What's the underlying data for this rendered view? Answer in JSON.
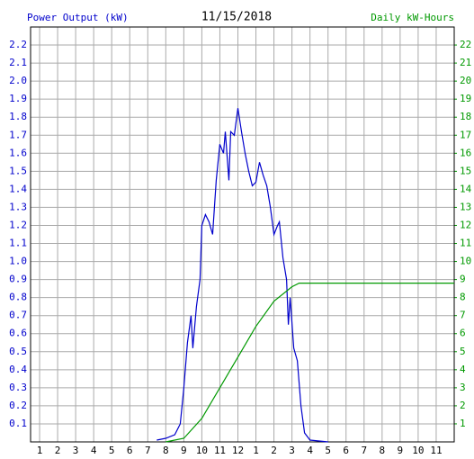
{
  "chart_data": {
    "type": "line",
    "title": "11/15/2018",
    "y_label": "Power Output (kW)",
    "y2_label": "Daily kW-Hours",
    "grid": true,
    "xlim": [
      0.5,
      24
    ],
    "xticks": [
      {
        "value": 1,
        "label": "1"
      },
      {
        "value": 2,
        "label": "2"
      },
      {
        "value": 3,
        "label": "3"
      },
      {
        "value": 4,
        "label": "4"
      },
      {
        "value": 5,
        "label": "5"
      },
      {
        "value": 6,
        "label": "6"
      },
      {
        "value": 7,
        "label": "7"
      },
      {
        "value": 8,
        "label": "8"
      },
      {
        "value": 9,
        "label": "9"
      },
      {
        "value": 10,
        "label": "10"
      },
      {
        "value": 11,
        "label": "11"
      },
      {
        "value": 12,
        "label": "12"
      },
      {
        "value": 13,
        "label": "1"
      },
      {
        "value": 14,
        "label": "2"
      },
      {
        "value": 15,
        "label": "3"
      },
      {
        "value": 16,
        "label": "4"
      },
      {
        "value": 17,
        "label": "5"
      },
      {
        "value": 18,
        "label": "6"
      },
      {
        "value": 19,
        "label": "7"
      },
      {
        "value": 20,
        "label": "8"
      },
      {
        "value": 21,
        "label": "9"
      },
      {
        "value": 22,
        "label": "10"
      },
      {
        "value": 23,
        "label": "11"
      }
    ],
    "ylim": [
      0,
      2.3
    ],
    "yticks": [
      0.1,
      0.2,
      0.3,
      0.4,
      0.5,
      0.6,
      0.7,
      0.8,
      0.9,
      {
        "value": 1,
        "label": "1.0"
      },
      1.1,
      1.2,
      1.3,
      1.4,
      1.5,
      1.6,
      1.7,
      1.8,
      1.9,
      {
        "value": 2,
        "label": "2.0"
      },
      2.1,
      2.2
    ],
    "y2lim": [
      0,
      23
    ],
    "y2ticks": [
      1,
      2,
      3,
      4,
      5,
      6,
      7,
      8,
      9,
      10,
      11,
      12,
      13,
      14,
      15,
      16,
      17,
      18,
      19,
      20,
      21,
      22
    ],
    "series": [
      {
        "name": "Power Output (kW)",
        "color": "#0000cc",
        "axis": "y",
        "x": [
          7.5,
          8,
          8.5,
          8.8,
          9,
          9.2,
          9.4,
          9.5,
          9.7,
          9.9,
          10,
          10.2,
          10.4,
          10.6,
          10.8,
          11,
          11.2,
          11.3,
          11.5,
          11.6,
          11.8,
          12,
          12.2,
          12.4,
          12.6,
          12.8,
          13,
          13.2,
          13.4,
          13.6,
          13.8,
          14,
          14.2,
          14.3,
          14.5,
          14.7,
          14.8,
          14.9,
          15.1,
          15.3,
          15.5,
          15.7,
          16,
          17
        ],
        "values": [
          0.01,
          0.02,
          0.04,
          0.1,
          0.3,
          0.55,
          0.7,
          0.52,
          0.75,
          0.9,
          1.2,
          1.26,
          1.22,
          1.15,
          1.45,
          1.65,
          1.6,
          1.72,
          1.45,
          1.72,
          1.7,
          1.85,
          1.72,
          1.6,
          1.5,
          1.42,
          1.44,
          1.55,
          1.48,
          1.42,
          1.3,
          1.15,
          1.2,
          1.22,
          1.02,
          0.9,
          0.65,
          0.8,
          0.52,
          0.45,
          0.2,
          0.05,
          0.01,
          0
        ]
      },
      {
        "name": "Daily kW-Hours",
        "color": "#009900",
        "axis": "y2",
        "x": [
          8,
          9,
          10,
          11,
          12,
          13,
          14,
          15,
          15.4,
          16,
          24
        ],
        "values": [
          0,
          0.2,
          1.3,
          3,
          4.7,
          6.4,
          7.8,
          8.6,
          8.8,
          8.8,
          8.8
        ]
      }
    ]
  }
}
